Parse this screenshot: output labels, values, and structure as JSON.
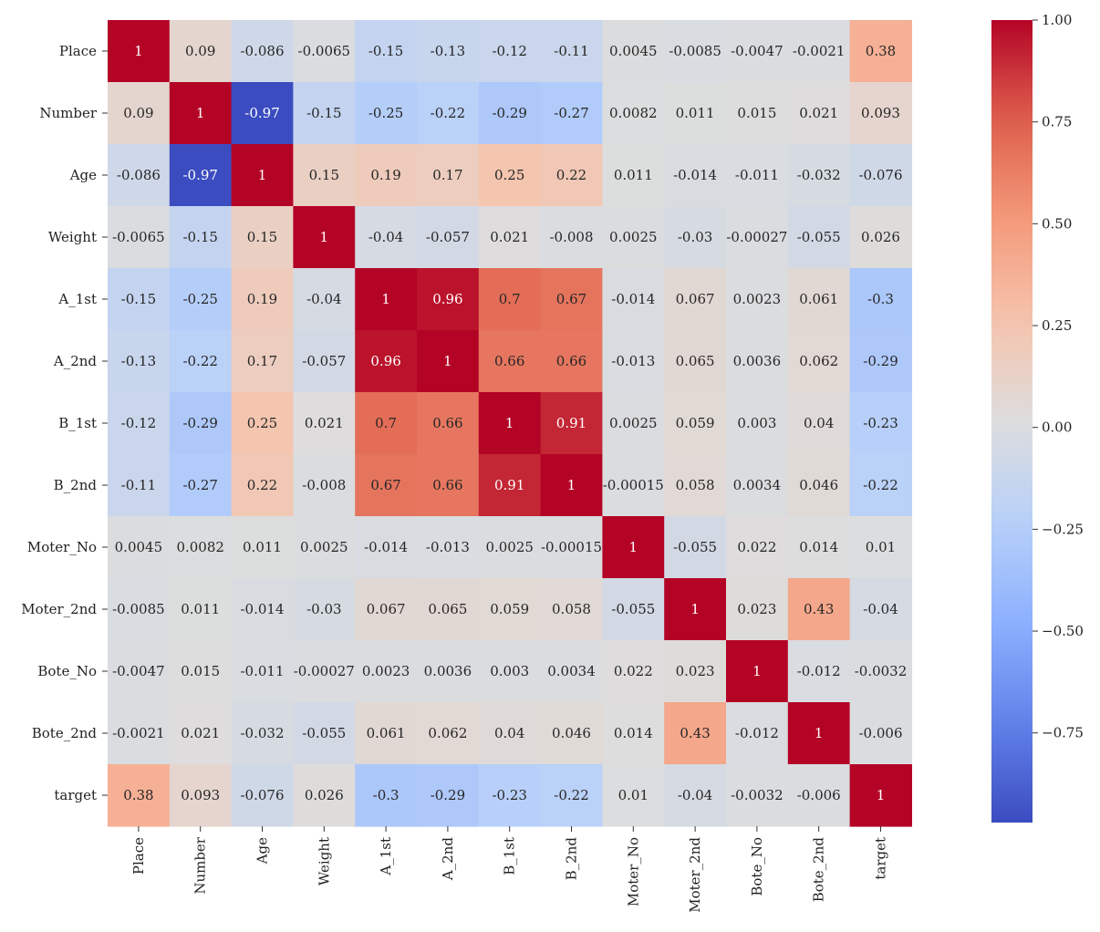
{
  "chart_data": {
    "type": "heatmap",
    "title": "",
    "xlabel": "",
    "ylabel": "",
    "colormap": "coolwarm",
    "vmin": -0.97,
    "vmax": 1.0,
    "labels": [
      "Place",
      "Number",
      "Age",
      "Weight",
      "A_1st",
      "A_2nd",
      "B_1st",
      "B_2nd",
      "Moter_No",
      "Moter_2nd",
      "Bote_No",
      "Bote_2nd",
      "target"
    ],
    "matrix": [
      [
        1,
        0.09,
        -0.086,
        -0.0065,
        -0.15,
        -0.13,
        -0.12,
        -0.11,
        0.0045,
        -0.0085,
        -0.0047,
        -0.0021,
        0.38
      ],
      [
        0.09,
        1,
        -0.97,
        -0.15,
        -0.25,
        -0.22,
        -0.29,
        -0.27,
        0.0082,
        0.011,
        0.015,
        0.021,
        0.093
      ],
      [
        -0.086,
        -0.97,
        1,
        0.15,
        0.19,
        0.17,
        0.25,
        0.22,
        0.011,
        -0.014,
        -0.011,
        -0.032,
        -0.076
      ],
      [
        -0.0065,
        -0.15,
        0.15,
        1,
        -0.04,
        -0.057,
        0.021,
        -0.008,
        0.0025,
        -0.03,
        -0.00027,
        -0.055,
        0.026
      ],
      [
        -0.15,
        -0.25,
        0.19,
        -0.04,
        1,
        0.96,
        0.7,
        0.67,
        -0.014,
        0.067,
        0.0023,
        0.061,
        -0.3
      ],
      [
        -0.13,
        -0.22,
        0.17,
        -0.057,
        0.96,
        1,
        0.66,
        0.66,
        -0.013,
        0.065,
        0.0036,
        0.062,
        -0.29
      ],
      [
        -0.12,
        -0.29,
        0.25,
        0.021,
        0.7,
        0.66,
        1,
        0.91,
        0.0025,
        0.059,
        0.003,
        0.04,
        -0.23
      ],
      [
        -0.11,
        -0.27,
        0.22,
        -0.008,
        0.67,
        0.66,
        0.91,
        1,
        -0.00015,
        0.058,
        0.0034,
        0.046,
        -0.22
      ],
      [
        0.0045,
        0.0082,
        0.011,
        0.0025,
        -0.014,
        -0.013,
        0.0025,
        -0.00015,
        1,
        -0.055,
        0.022,
        0.014,
        0.01
      ],
      [
        -0.0085,
        0.011,
        -0.014,
        -0.03,
        0.067,
        0.065,
        0.059,
        0.058,
        -0.055,
        1,
        0.023,
        0.43,
        -0.04
      ],
      [
        -0.0047,
        0.015,
        -0.011,
        -0.00027,
        0.0023,
        0.0036,
        0.003,
        0.0034,
        0.022,
        0.023,
        1,
        -0.012,
        -0.0032
      ],
      [
        -0.0021,
        0.021,
        -0.032,
        -0.055,
        0.061,
        0.062,
        0.04,
        0.046,
        0.014,
        0.43,
        -0.012,
        1,
        -0.006
      ],
      [
        0.38,
        0.093,
        -0.076,
        0.026,
        -0.3,
        -0.29,
        -0.23,
        -0.22,
        0.01,
        -0.04,
        -0.0032,
        -0.006,
        1
      ]
    ],
    "cell_text": [
      [
        "1",
        "0.09",
        "-0.086",
        "-0.0065",
        "-0.15",
        "-0.13",
        "-0.12",
        "-0.11",
        "0.0045",
        "-0.0085",
        "-0.0047",
        "-0.0021",
        "0.38"
      ],
      [
        "0.09",
        "1",
        "-0.97",
        "-0.15",
        "-0.25",
        "-0.22",
        "-0.29",
        "-0.27",
        "0.0082",
        "0.011",
        "0.015",
        "0.021",
        "0.093"
      ],
      [
        "-0.086",
        "-0.97",
        "1",
        "0.15",
        "0.19",
        "0.17",
        "0.25",
        "0.22",
        "0.011",
        "-0.014",
        "-0.011",
        "-0.032",
        "-0.076"
      ],
      [
        "-0.0065",
        "-0.15",
        "0.15",
        "1",
        "-0.04",
        "-0.057",
        "0.021",
        "-0.008",
        "0.0025",
        "-0.03",
        "-0.00027",
        "-0.055",
        "0.026"
      ],
      [
        "-0.15",
        "-0.25",
        "0.19",
        "-0.04",
        "1",
        "0.96",
        "0.7",
        "0.67",
        "-0.014",
        "0.067",
        "0.0023",
        "0.061",
        "-0.3"
      ],
      [
        "-0.13",
        "-0.22",
        "0.17",
        "-0.057",
        "0.96",
        "1",
        "0.66",
        "0.66",
        "-0.013",
        "0.065",
        "0.0036",
        "0.062",
        "-0.29"
      ],
      [
        "-0.12",
        "-0.29",
        "0.25",
        "0.021",
        "0.7",
        "0.66",
        "1",
        "0.91",
        "0.0025",
        "0.059",
        "0.003",
        "0.04",
        "-0.23"
      ],
      [
        "-0.11",
        "-0.27",
        "0.22",
        "-0.008",
        "0.67",
        "0.66",
        "0.91",
        "1",
        "-0.00015",
        "0.058",
        "0.0034",
        "0.046",
        "-0.22"
      ],
      [
        "0.0045",
        "0.0082",
        "0.011",
        "0.0025",
        "-0.014",
        "-0.013",
        "0.0025",
        "-0.00015",
        "1",
        "-0.055",
        "0.022",
        "0.014",
        "0.01"
      ],
      [
        "-0.0085",
        "0.011",
        "-0.014",
        "-0.03",
        "0.067",
        "0.065",
        "0.059",
        "0.058",
        "-0.055",
        "1",
        "0.023",
        "0.43",
        "-0.04"
      ],
      [
        "-0.0047",
        "0.015",
        "-0.011",
        "-0.00027",
        "0.0023",
        "0.0036",
        "0.003",
        "0.0034",
        "0.022",
        "0.023",
        "1",
        "-0.012",
        "-0.0032"
      ],
      [
        "-0.0021",
        "0.021",
        "-0.032",
        "-0.055",
        "0.061",
        "0.062",
        "0.04",
        "0.046",
        "0.014",
        "0.43",
        "-0.012",
        "1",
        "-0.006"
      ],
      [
        "0.38",
        "0.093",
        "-0.076",
        "0.026",
        "-0.3",
        "-0.29",
        "-0.23",
        "-0.22",
        "0.01",
        "-0.04",
        "-0.0032",
        "-0.006",
        "1"
      ]
    ],
    "colorbar": {
      "ticks": [
        1.0,
        0.75,
        0.5,
        0.25,
        0.0,
        -0.25,
        -0.5,
        -0.75
      ],
      "tick_labels": [
        "1.00",
        "0.75",
        "0.50",
        "0.25",
        "0.00",
        "−0.25",
        "−0.50",
        "−0.75"
      ]
    }
  }
}
